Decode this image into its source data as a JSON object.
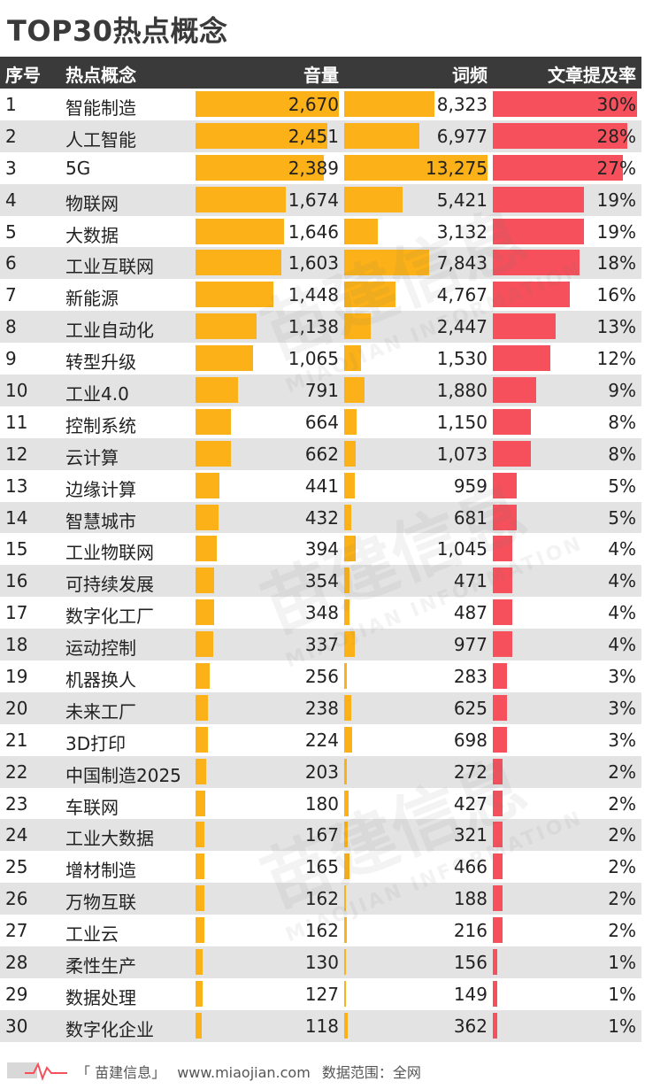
{
  "title": "TOP30热点概念",
  "headers": {
    "rank": "序号",
    "concept": "热点概念",
    "volume": "音量",
    "frequency": "词频",
    "rate": "文章提及率"
  },
  "colors": {
    "volume_bar": "#fbb117",
    "frequency_bar": "#fbb117",
    "rate_bar": "#f5505b",
    "header_bg": "#3a3a3a",
    "shade": "#e3e3e3"
  },
  "watermark": {
    "brand": "苗建信息",
    "en": "MIAOJIAN INFORMATION"
  },
  "footer": {
    "brand": "「 苗建信息」",
    "site": "www.miaojian.com",
    "scope": "数据范围：全网"
  },
  "chart_data": {
    "type": "table",
    "title": "TOP30热点概念",
    "columns": [
      "序号",
      "热点概念",
      "音量",
      "词频",
      "文章提及率"
    ],
    "rows": [
      {
        "rank": "1",
        "concept": "智能制造",
        "volume": 2670,
        "volume_label": "2,670",
        "freq": 8323,
        "freq_label": "8,323",
        "rate": 30,
        "rate_label": "30%"
      },
      {
        "rank": "2",
        "concept": "人工智能",
        "volume": 2451,
        "volume_label": "2,451",
        "freq": 6977,
        "freq_label": "6,977",
        "rate": 28,
        "rate_label": "28%"
      },
      {
        "rank": "3",
        "concept": "5G",
        "volume": 2389,
        "volume_label": "2,389",
        "freq": 13275,
        "freq_label": "13,275",
        "rate": 27,
        "rate_label": "27%"
      },
      {
        "rank": "4",
        "concept": "物联网",
        "volume": 1674,
        "volume_label": "1,674",
        "freq": 5421,
        "freq_label": "5,421",
        "rate": 19,
        "rate_label": "19%"
      },
      {
        "rank": "5",
        "concept": "大数据",
        "volume": 1646,
        "volume_label": "1,646",
        "freq": 3132,
        "freq_label": "3,132",
        "rate": 19,
        "rate_label": "19%"
      },
      {
        "rank": "6",
        "concept": "工业互联网",
        "volume": 1603,
        "volume_label": "1,603",
        "freq": 7843,
        "freq_label": "7,843",
        "rate": 18,
        "rate_label": "18%"
      },
      {
        "rank": "7",
        "concept": "新能源",
        "volume": 1448,
        "volume_label": "1,448",
        "freq": 4767,
        "freq_label": "4,767",
        "rate": 16,
        "rate_label": "16%"
      },
      {
        "rank": "8",
        "concept": "工业自动化",
        "volume": 1138,
        "volume_label": "1,138",
        "freq": 2447,
        "freq_label": "2,447",
        "rate": 13,
        "rate_label": "13%"
      },
      {
        "rank": "9",
        "concept": "转型升级",
        "volume": 1065,
        "volume_label": "1,065",
        "freq": 1530,
        "freq_label": "1,530",
        "rate": 12,
        "rate_label": "12%"
      },
      {
        "rank": "10",
        "concept": "工业4.0",
        "volume": 791,
        "volume_label": "791",
        "freq": 1880,
        "freq_label": "1,880",
        "rate": 9,
        "rate_label": "9%"
      },
      {
        "rank": "11",
        "concept": "控制系统",
        "volume": 664,
        "volume_label": "664",
        "freq": 1150,
        "freq_label": "1,150",
        "rate": 8,
        "rate_label": "8%"
      },
      {
        "rank": "12",
        "concept": "云计算",
        "volume": 662,
        "volume_label": "662",
        "freq": 1073,
        "freq_label": "1,073",
        "rate": 8,
        "rate_label": "8%"
      },
      {
        "rank": "13",
        "concept": "边缘计算",
        "volume": 441,
        "volume_label": "441",
        "freq": 959,
        "freq_label": "959",
        "rate": 5,
        "rate_label": "5%"
      },
      {
        "rank": "14",
        "concept": "智慧城市",
        "volume": 432,
        "volume_label": "432",
        "freq": 681,
        "freq_label": "681",
        "rate": 5,
        "rate_label": "5%"
      },
      {
        "rank": "15",
        "concept": "工业物联网",
        "volume": 394,
        "volume_label": "394",
        "freq": 1045,
        "freq_label": "1,045",
        "rate": 4,
        "rate_label": "4%"
      },
      {
        "rank": "16",
        "concept": "可持续发展",
        "volume": 354,
        "volume_label": "354",
        "freq": 471,
        "freq_label": "471",
        "rate": 4,
        "rate_label": "4%"
      },
      {
        "rank": "17",
        "concept": "数字化工厂",
        "volume": 348,
        "volume_label": "348",
        "freq": 487,
        "freq_label": "487",
        "rate": 4,
        "rate_label": "4%"
      },
      {
        "rank": "18",
        "concept": "运动控制",
        "volume": 337,
        "volume_label": "337",
        "freq": 977,
        "freq_label": "977",
        "rate": 4,
        "rate_label": "4%"
      },
      {
        "rank": "19",
        "concept": "机器换人",
        "volume": 256,
        "volume_label": "256",
        "freq": 283,
        "freq_label": "283",
        "rate": 3,
        "rate_label": "3%"
      },
      {
        "rank": "20",
        "concept": "未来工厂",
        "volume": 238,
        "volume_label": "238",
        "freq": 625,
        "freq_label": "625",
        "rate": 3,
        "rate_label": "3%"
      },
      {
        "rank": "21",
        "concept": "3D打印",
        "volume": 224,
        "volume_label": "224",
        "freq": 698,
        "freq_label": "698",
        "rate": 3,
        "rate_label": "3%"
      },
      {
        "rank": "22",
        "concept": "中国制造2025",
        "volume": 203,
        "volume_label": "203",
        "freq": 272,
        "freq_label": "272",
        "rate": 2,
        "rate_label": "2%"
      },
      {
        "rank": "23",
        "concept": "车联网",
        "volume": 180,
        "volume_label": "180",
        "freq": 427,
        "freq_label": "427",
        "rate": 2,
        "rate_label": "2%"
      },
      {
        "rank": "24",
        "concept": "工业大数据",
        "volume": 167,
        "volume_label": "167",
        "freq": 321,
        "freq_label": "321",
        "rate": 2,
        "rate_label": "2%"
      },
      {
        "rank": "25",
        "concept": "增材制造",
        "volume": 165,
        "volume_label": "165",
        "freq": 466,
        "freq_label": "466",
        "rate": 2,
        "rate_label": "2%"
      },
      {
        "rank": "26",
        "concept": "万物互联",
        "volume": 162,
        "volume_label": "162",
        "freq": 188,
        "freq_label": "188",
        "rate": 2,
        "rate_label": "2%"
      },
      {
        "rank": "27",
        "concept": "工业云",
        "volume": 162,
        "volume_label": "162",
        "freq": 216,
        "freq_label": "216",
        "rate": 2,
        "rate_label": "2%"
      },
      {
        "rank": "28",
        "concept": "柔性生产",
        "volume": 130,
        "volume_label": "130",
        "freq": 156,
        "freq_label": "156",
        "rate": 1,
        "rate_label": "1%"
      },
      {
        "rank": "29",
        "concept": "数据处理",
        "volume": 127,
        "volume_label": "127",
        "freq": 149,
        "freq_label": "149",
        "rate": 1,
        "rate_label": "1%"
      },
      {
        "rank": "30",
        "concept": "数字化企业",
        "volume": 118,
        "volume_label": "118",
        "freq": 362,
        "freq_label": "362",
        "rate": 1,
        "rate_label": "1%"
      }
    ]
  }
}
